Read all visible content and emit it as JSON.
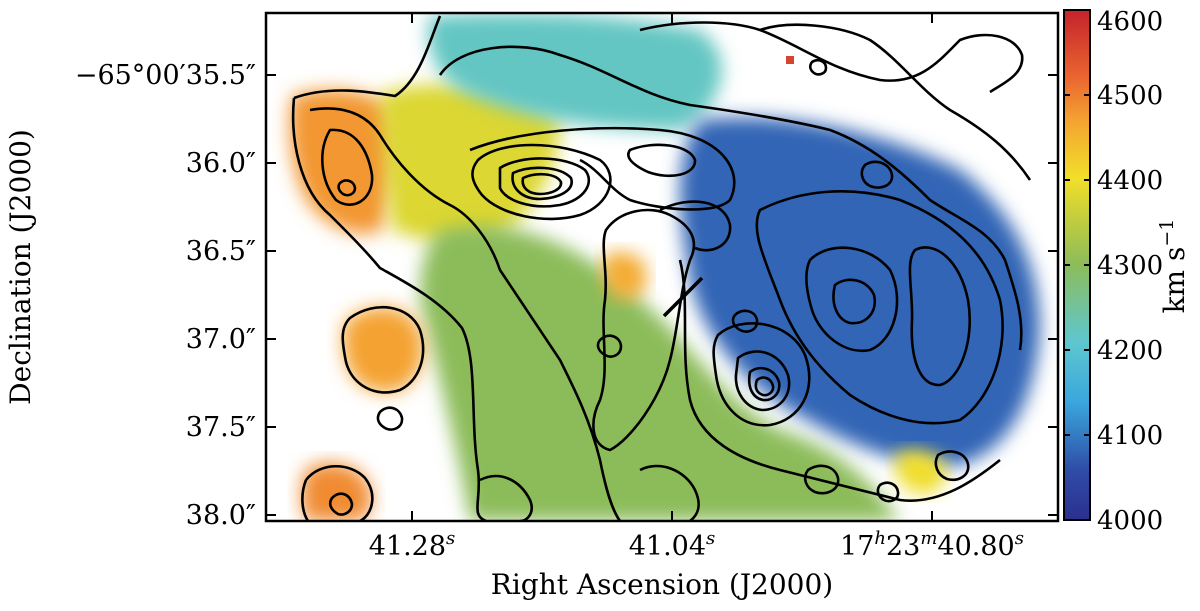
{
  "chart_data": {
    "type": "heatmap",
    "xlabel": "Right Ascension (J2000)",
    "ylabel": "Declination (J2000)",
    "x_ticks": [
      {
        "label": "41.28",
        "sup": "s"
      },
      {
        "label": "41.04",
        "sup": "s"
      },
      {
        "label": "17h23m40.80",
        "parts": [
          "17",
          "h",
          "23",
          "m",
          "40.80",
          "s"
        ]
      }
    ],
    "y_ticks": [
      "−65°00′35.5″",
      "36.0″",
      "36.5″",
      "37.0″",
      "37.5″",
      "38.0″"
    ],
    "y_tick_values": [
      35.5,
      36.0,
      36.5,
      37.0,
      37.5,
      38.0
    ],
    "colorbar": {
      "label": "km s−1",
      "label_main": "km s",
      "label_sup": "−1",
      "range": [
        4000,
        4600
      ],
      "ticks": [
        "4000",
        "4100",
        "4200",
        "4300",
        "4400",
        "4500",
        "4600"
      ],
      "tick_values": [
        4000,
        4100,
        4200,
        4300,
        4400,
        4500,
        4600
      ],
      "colormap": "jet-like (blue → cyan → green → yellow → red)"
    },
    "regions": [
      {
        "area": "west arm",
        "velocity": 4480
      },
      {
        "area": "upper-left central",
        "velocity": 4380
      },
      {
        "area": "central-south",
        "velocity": 4300
      },
      {
        "area": "north-central",
        "velocity": 4220
      },
      {
        "area": "east",
        "velocity": 4080
      },
      {
        "area": "south-west blob",
        "velocity": 4470
      },
      {
        "area": "small knot near center",
        "velocity": 4460
      },
      {
        "area": "south-east knot",
        "velocity": 4400
      }
    ],
    "contours": true,
    "grid": false
  }
}
